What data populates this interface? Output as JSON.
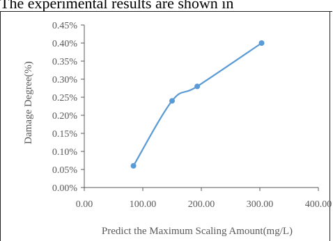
{
  "caption": "The experimental results are shown in",
  "chart_data": {
    "type": "line",
    "smooth": true,
    "x": [
      84,
      150,
      193,
      303
    ],
    "series": [
      {
        "values": [
          0.06,
          0.24,
          0.28,
          0.4
        ]
      }
    ],
    "xlabel": "Predict the Maximum Scaling Amount(mg/L)",
    "ylabel": "Damage Degree(%)",
    "xlim": [
      0,
      400
    ],
    "ylim": [
      0,
      0.45
    ],
    "xticks": [
      "0.00",
      "100.00",
      "200.00",
      "300.00",
      "400.00"
    ],
    "yticks": [
      "0.00%",
      "0.05%",
      "0.10%",
      "0.15%",
      "0.20%",
      "0.25%",
      "0.30%",
      "0.35%",
      "0.40%",
      "0.45%"
    ],
    "grid": false,
    "legend": "none",
    "color": "#5B9BD5"
  }
}
